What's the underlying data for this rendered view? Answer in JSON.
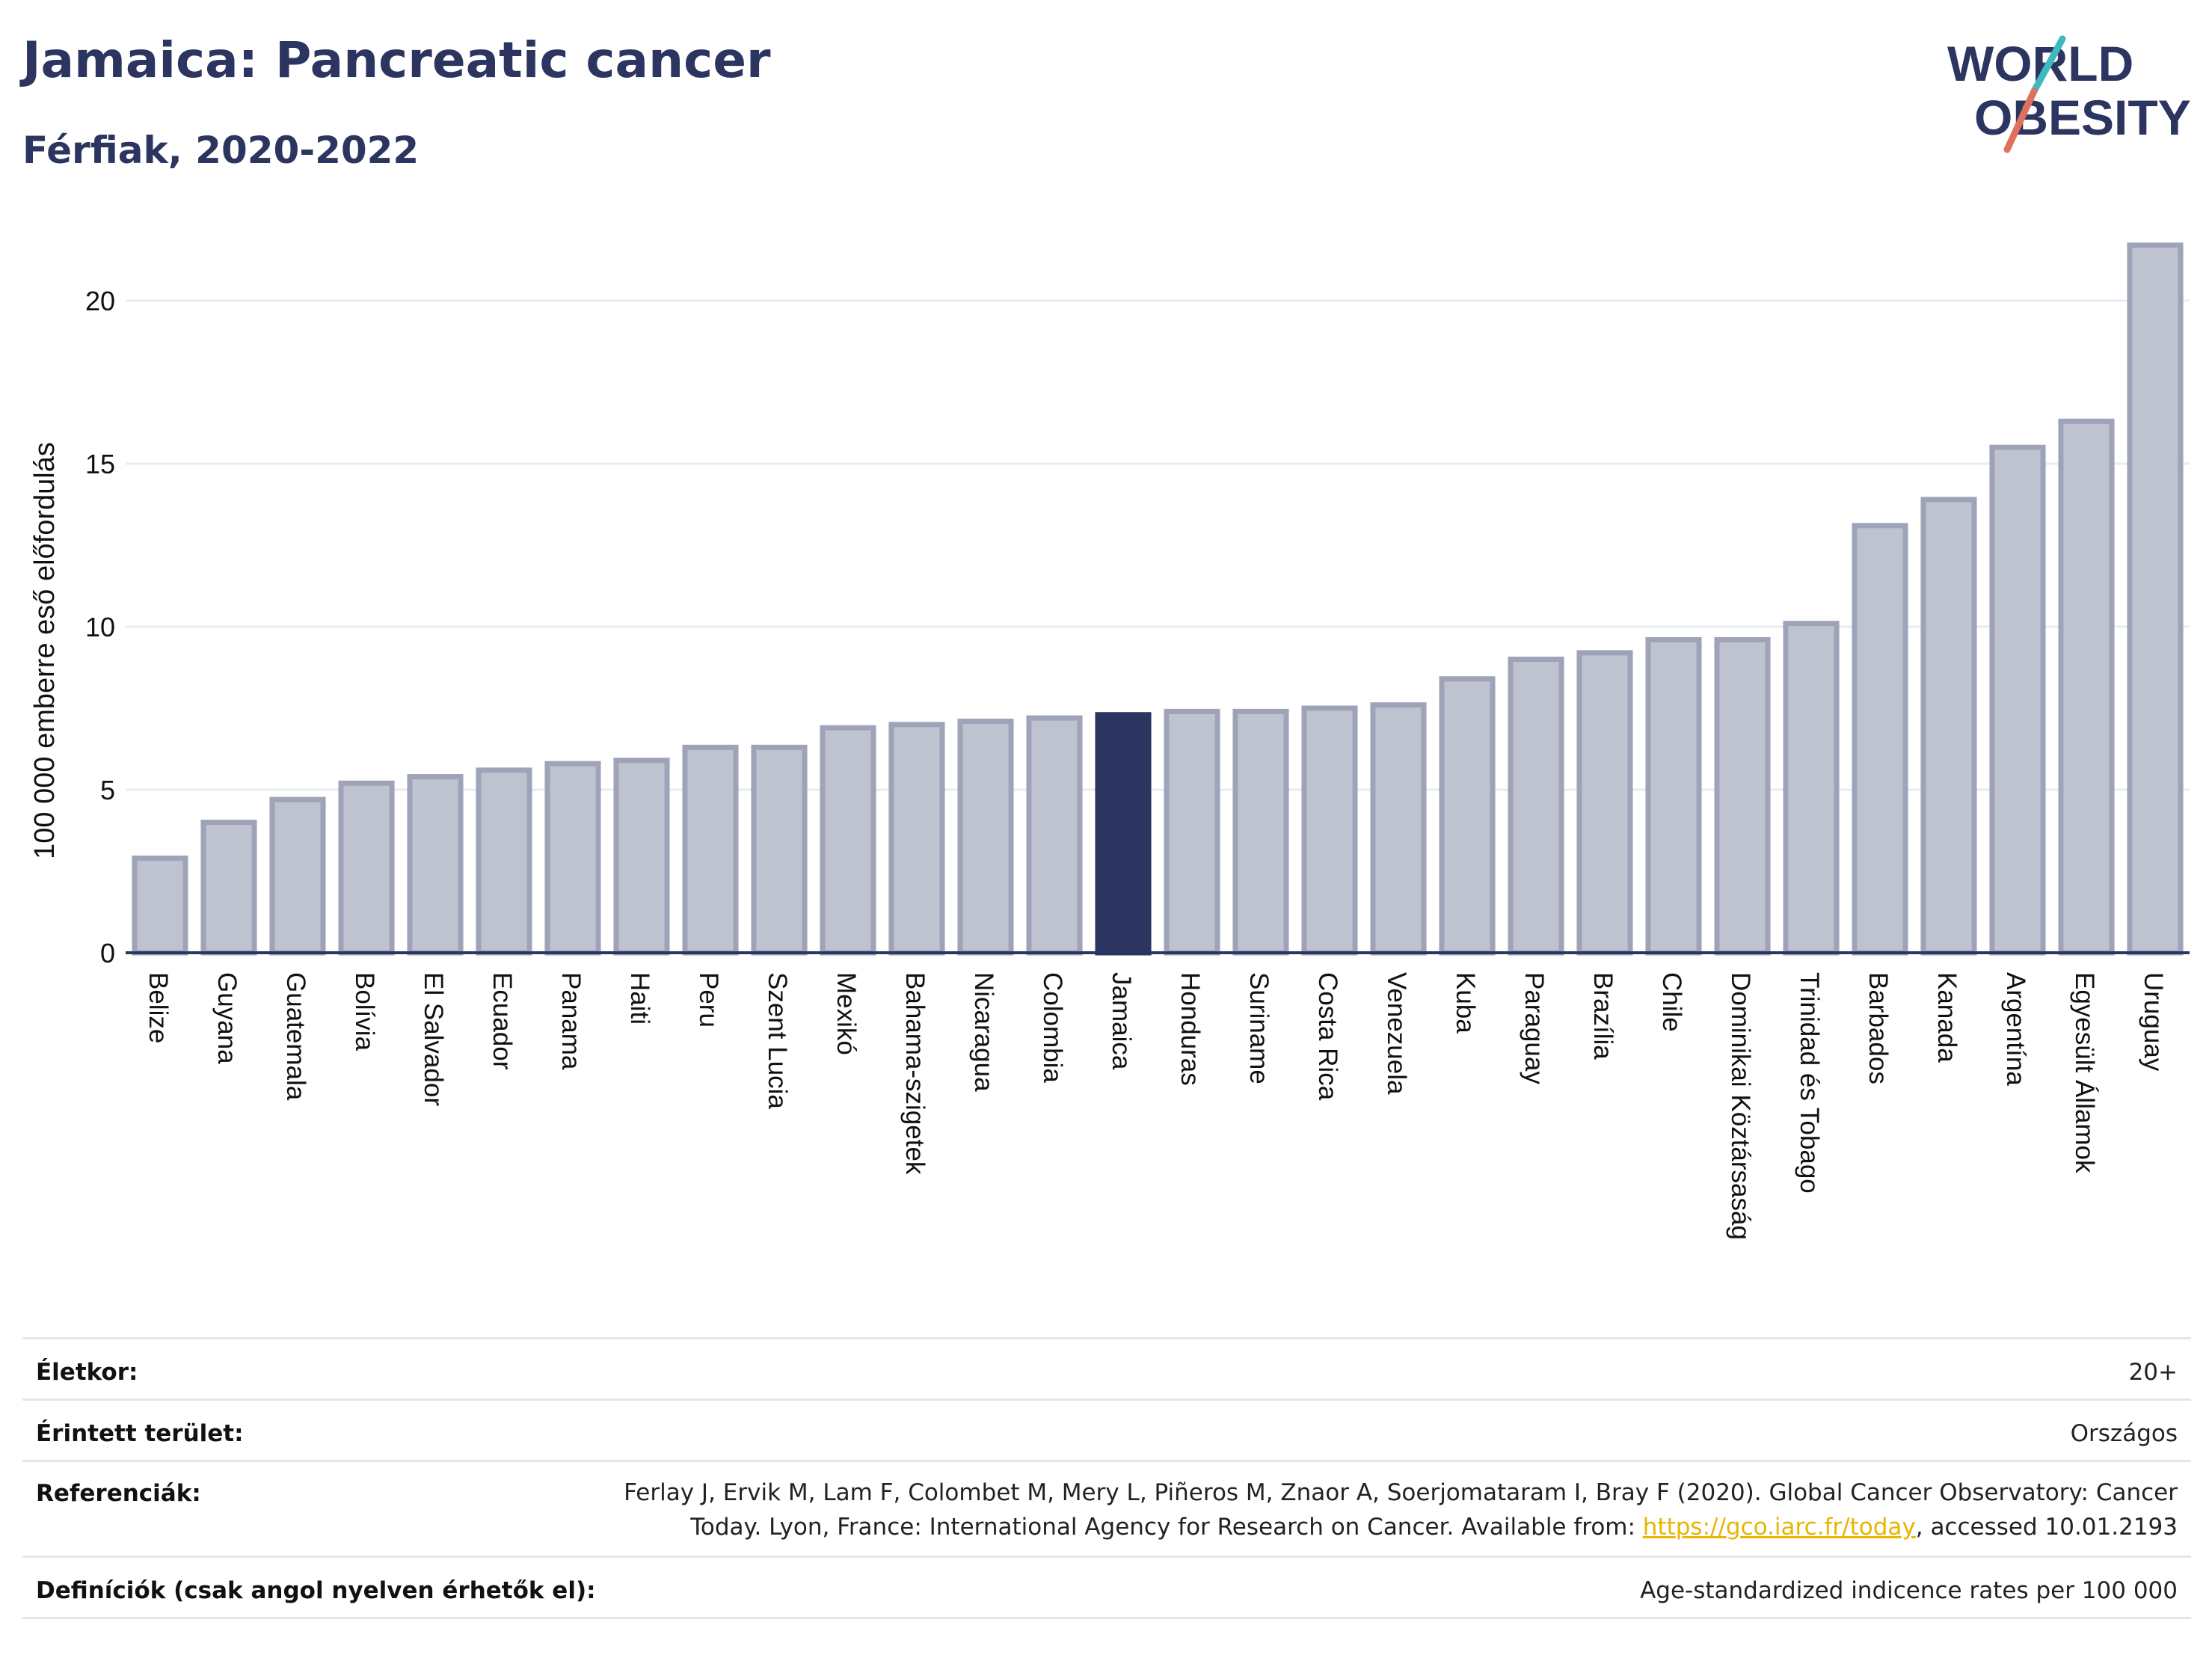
{
  "title": "Jamaica: Pancreatic cancer",
  "subtitle": "Férfiak, 2020-2022",
  "logo": {
    "line1": "WORLD",
    "line2": "OBESITY"
  },
  "colors": {
    "bar": "#bfc3d0",
    "bar_stroke": "#9ea3b8",
    "highlight": "#2b3560",
    "grid": "#e8ebf0",
    "axis": "#2b3560"
  },
  "chart_data": {
    "type": "bar",
    "ylabel": "100 000 emberre eső előfordulás",
    "ylim": [
      0,
      22
    ],
    "yticks": [
      0,
      5,
      10,
      15,
      20
    ],
    "highlight": "Jamaica",
    "categories": [
      "Belize",
      "Guyana",
      "Guatemala",
      "Bolívia",
      "El Salvador",
      "Ecuador",
      "Panama",
      "Haiti",
      "Peru",
      "Szent Lucia",
      "Mexikó",
      "Bahama-szigetek",
      "Nicaragua",
      "Colombia",
      "Jamaica",
      "Honduras",
      "Suriname",
      "Costa Rica",
      "Venezuela",
      "Kuba",
      "Paraguay",
      "Brazília",
      "Chile",
      "Dominikai Köztársaság",
      "Trinidad és Tobago",
      "Barbados",
      "Kanada",
      "Argentína",
      "Egyesült Államok",
      "Uruguay"
    ],
    "values": [
      2.9,
      4.0,
      4.7,
      5.2,
      5.4,
      5.6,
      5.8,
      5.9,
      6.3,
      6.3,
      6.9,
      7.0,
      7.1,
      7.2,
      7.3,
      7.4,
      7.4,
      7.5,
      7.6,
      8.4,
      9.0,
      9.2,
      9.6,
      9.6,
      10.1,
      13.1,
      13.9,
      15.5,
      16.3,
      21.7
    ]
  },
  "meta": {
    "age_label": "Életkor:",
    "age_value": "20+",
    "area_label": "Érintett terület:",
    "area_value": "Országos",
    "ref_label": "Referenciák:",
    "ref_line1": "Ferlay J, Ervik M, Lam F, Colombet M, Mery L, Piñeros M, Znaor A, Soerjomataram I, Bray F (2020). Global Cancer Observatory: Cancer",
    "ref_line2_pre": "Today. Lyon, France: International Agency for Research on Cancer. Available from: ",
    "ref_link": "https://gco.iarc.fr/today",
    "ref_line2_post": ", accessed 10.01.2193",
    "def_label": "Definíciók (csak angol nyelven érhetők el):",
    "def_value": "Age-standardized indicence rates per 100 000"
  }
}
